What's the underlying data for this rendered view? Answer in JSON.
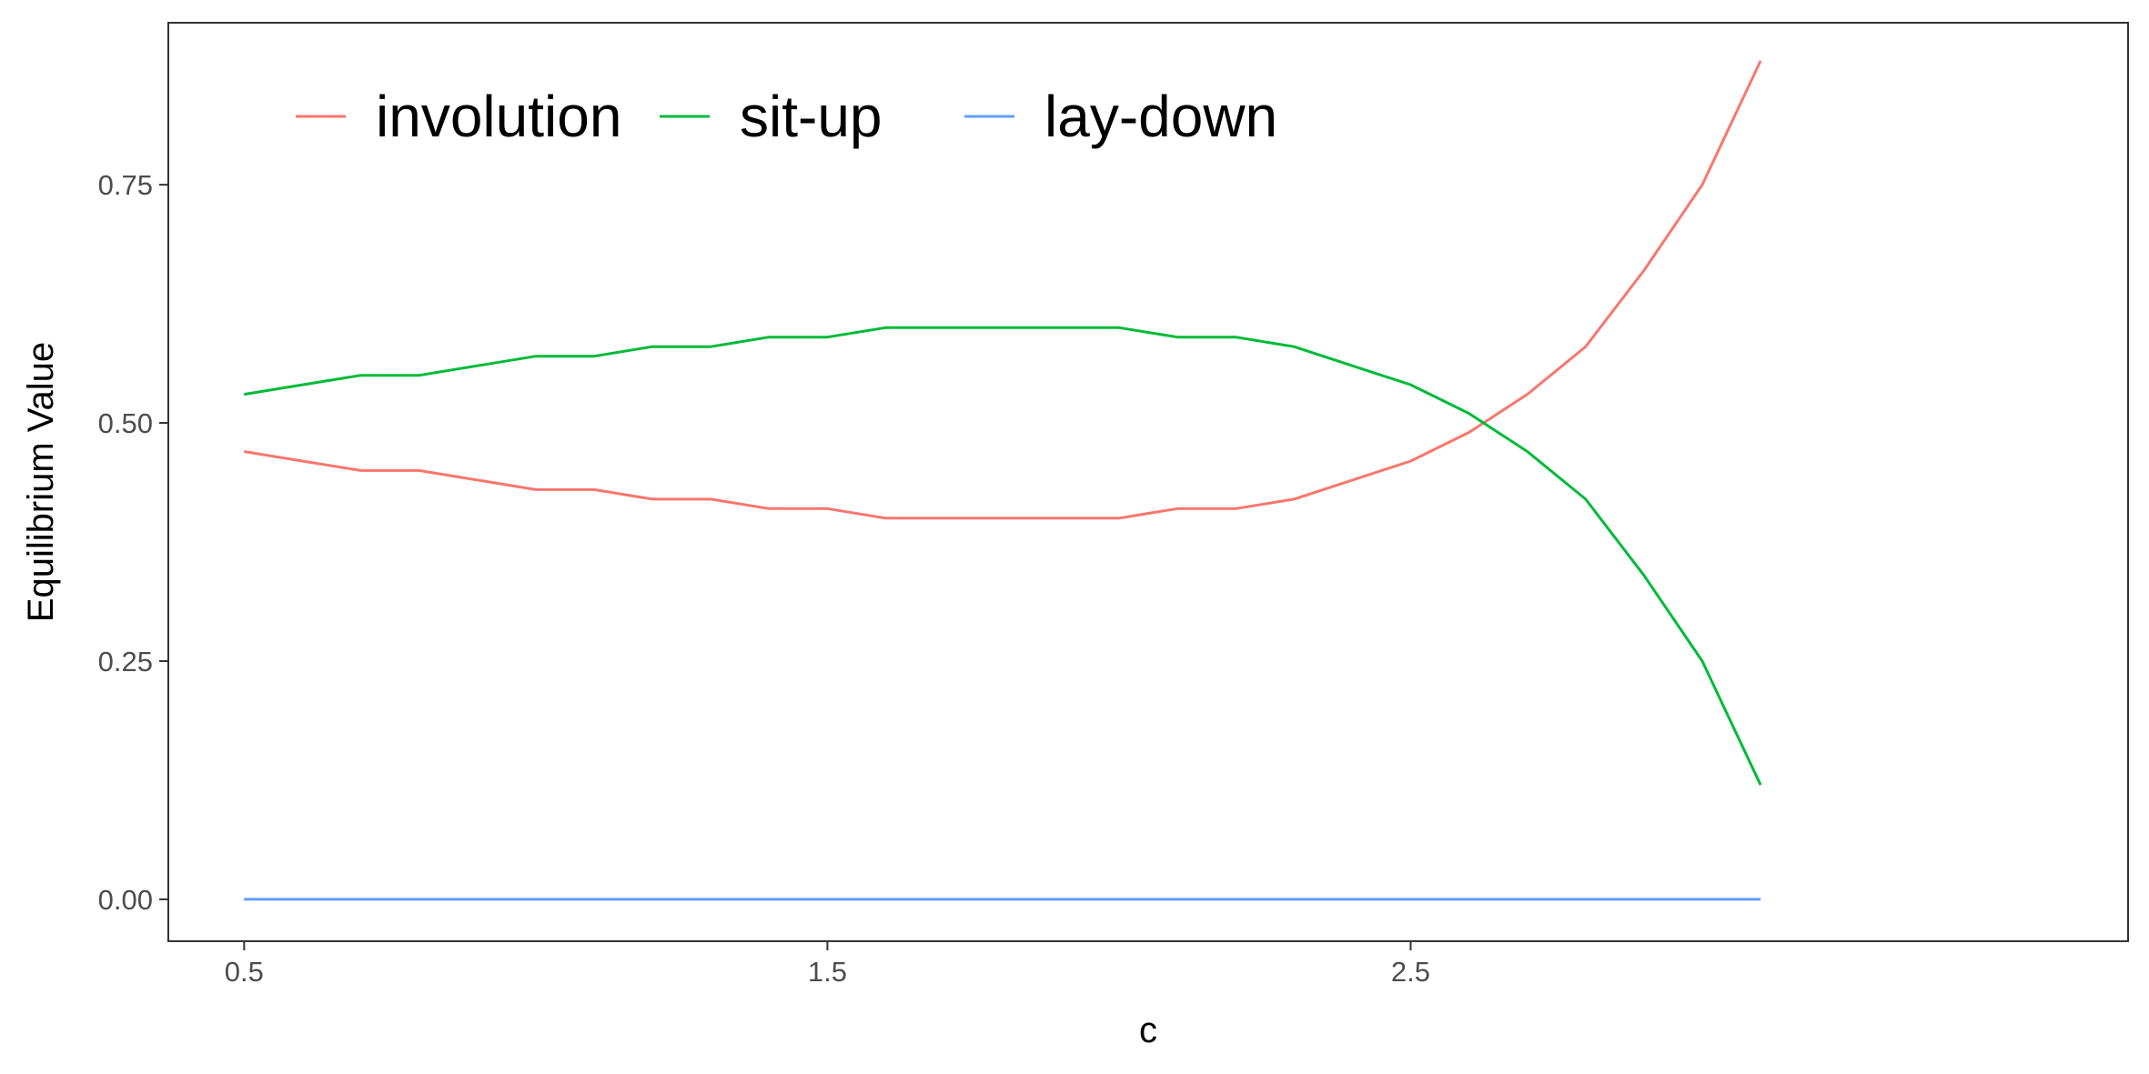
{
  "chart_data": {
    "type": "line",
    "title": "",
    "xlabel": "c",
    "ylabel": "Equilibrium Value",
    "xlim": [
      0.37,
      3.73
    ],
    "ylim": [
      -0.044,
      0.92
    ],
    "x_ticks": [
      0.5,
      1.5,
      2.5
    ],
    "x_tick_labels": [
      "0.5",
      "1.5",
      "2.5"
    ],
    "y_ticks": [
      0,
      0.25,
      0.5,
      0.75
    ],
    "y_tick_labels": [
      "0.00",
      "0.25",
      "0.50",
      "0.75"
    ],
    "grid": false,
    "legend_position": "top-left",
    "x": [
      0.5,
      0.6,
      0.7,
      0.8,
      0.9,
      1.0,
      1.1,
      1.2,
      1.3,
      1.4,
      1.5,
      1.6,
      1.7,
      1.8,
      1.9,
      2.0,
      2.1,
      2.2,
      2.3,
      2.4,
      2.5,
      2.6,
      2.7,
      2.8,
      2.9,
      3.0,
      3.1
    ],
    "series": [
      {
        "name": "involution",
        "color": "#F8766D",
        "values": [
          0.47,
          0.46,
          0.45,
          0.45,
          0.44,
          0.43,
          0.43,
          0.42,
          0.42,
          0.41,
          0.41,
          0.4,
          0.4,
          0.4,
          0.4,
          0.4,
          0.41,
          0.41,
          0.42,
          0.44,
          0.46,
          0.49,
          0.53,
          0.58,
          0.66,
          0.75,
          0.88
        ]
      },
      {
        "name": "sit-up",
        "color": "#00BA38",
        "values": [
          0.53,
          0.54,
          0.55,
          0.55,
          0.56,
          0.57,
          0.57,
          0.58,
          0.58,
          0.59,
          0.59,
          0.6,
          0.6,
          0.6,
          0.6,
          0.6,
          0.59,
          0.59,
          0.58,
          0.56,
          0.54,
          0.51,
          0.47,
          0.42,
          0.34,
          0.25,
          0.12
        ]
      },
      {
        "name": "lay-down",
        "color": "#619CFF",
        "values": [
          0,
          0,
          0,
          0,
          0,
          0,
          0,
          0,
          0,
          0,
          0,
          0,
          0,
          0,
          0,
          0,
          0,
          0,
          0,
          0,
          0,
          0,
          0,
          0,
          0,
          0,
          0
        ]
      }
    ]
  }
}
